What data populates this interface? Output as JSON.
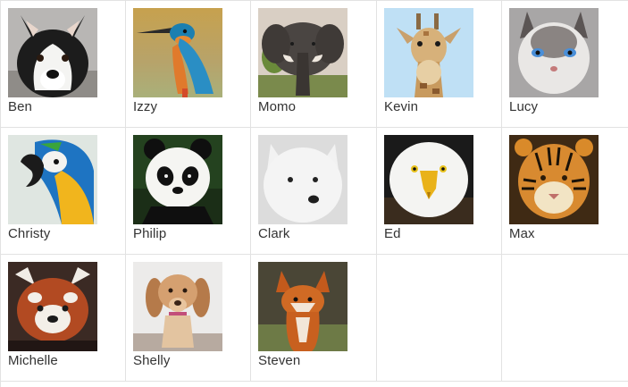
{
  "gallery": {
    "animals": [
      {
        "name": "Ben",
        "icon": "husky-photo"
      },
      {
        "name": "Izzy",
        "icon": "kingfisher-photo"
      },
      {
        "name": "Momo",
        "icon": "elephant-photo"
      },
      {
        "name": "Kevin",
        "icon": "giraffe-photo"
      },
      {
        "name": "Lucy",
        "icon": "cat-photo"
      },
      {
        "name": "Christy",
        "icon": "macaw-photo"
      },
      {
        "name": "Philip",
        "icon": "panda-photo"
      },
      {
        "name": "Clark",
        "icon": "samoyed-photo"
      },
      {
        "name": "Ed",
        "icon": "eagle-photo"
      },
      {
        "name": "Max",
        "icon": "tiger-photo"
      },
      {
        "name": "Michelle",
        "icon": "red-panda-photo"
      },
      {
        "name": "Shelly",
        "icon": "spaniel-photo"
      },
      {
        "name": "Steven",
        "icon": "fox-photo"
      }
    ]
  }
}
